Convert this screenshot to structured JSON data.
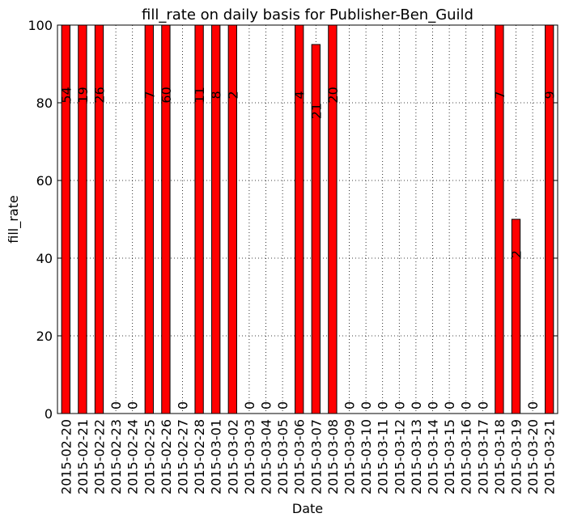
{
  "chart_data": {
    "type": "bar",
    "title": "fill_rate on daily basis for Publisher-Ben_Guild",
    "x_label": "Date",
    "y_label": "fill_rate",
    "categories": [
      "2015-02-20",
      "2015-02-21",
      "2015-02-22",
      "2015-02-23",
      "2015-02-24",
      "2015-02-25",
      "2015-02-26",
      "2015-02-27",
      "2015-02-28",
      "2015-03-01",
      "2015-03-02",
      "2015-03-03",
      "2015-03-04",
      "2015-03-05",
      "2015-03-06",
      "2015-03-07",
      "2015-03-08",
      "2015-03-09",
      "2015-03-10",
      "2015-03-11",
      "2015-03-12",
      "2015-03-13",
      "2015-03-14",
      "2015-03-15",
      "2015-03-16",
      "2015-03-17",
      "2015-03-18",
      "2015-03-19",
      "2015-03-20",
      "2015-03-21"
    ],
    "values": [
      100,
      100,
      100,
      0,
      0,
      100,
      100,
      0,
      100,
      100,
      100,
      0,
      0,
      0,
      100,
      95,
      100,
      0,
      0,
      0,
      0,
      0,
      0,
      0,
      0,
      0,
      100,
      50,
      0,
      100
    ],
    "bar_labels": [
      54,
      19,
      26,
      0,
      0,
      7,
      60,
      0,
      11,
      8,
      2,
      0,
      0,
      0,
      4,
      21,
      20,
      0,
      0,
      0,
      0,
      0,
      0,
      0,
      0,
      0,
      7,
      2,
      0,
      9
    ],
    "color": "#ff0000",
    "ylim": [
      0,
      100
    ],
    "yticks": [
      0,
      20,
      40,
      60,
      80,
      100
    ],
    "grid": true
  }
}
